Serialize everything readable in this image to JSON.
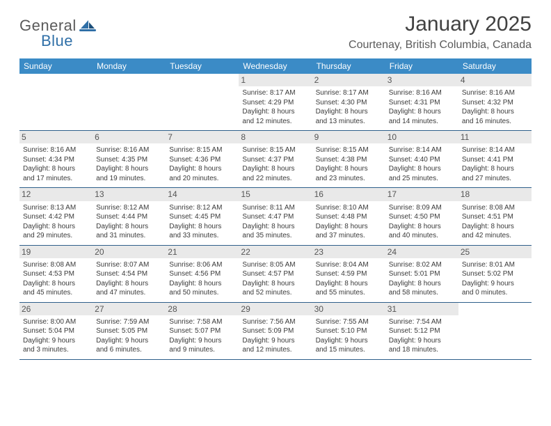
{
  "logo": {
    "text1": "General",
    "text2": "Blue"
  },
  "title": "January 2025",
  "location": "Courtenay, British Columbia, Canada",
  "colors": {
    "header_bg": "#3b8bc6",
    "header_text": "#ffffff",
    "rule": "#2e5f8a",
    "daynum_bg": "#e9e9e9",
    "body_text": "#3a3a3a",
    "title_text": "#414141",
    "logo_gray": "#5a5a5a",
    "logo_blue": "#2f6fa7"
  },
  "weekdays": [
    "Sunday",
    "Monday",
    "Tuesday",
    "Wednesday",
    "Thursday",
    "Friday",
    "Saturday"
  ],
  "weeks": [
    [
      null,
      null,
      null,
      {
        "n": "1",
        "sunrise": "8:17 AM",
        "sunset": "4:29 PM",
        "dl1": "8 hours",
        "dl2": "12 minutes"
      },
      {
        "n": "2",
        "sunrise": "8:17 AM",
        "sunset": "4:30 PM",
        "dl1": "8 hours",
        "dl2": "13 minutes"
      },
      {
        "n": "3",
        "sunrise": "8:16 AM",
        "sunset": "4:31 PM",
        "dl1": "8 hours",
        "dl2": "14 minutes"
      },
      {
        "n": "4",
        "sunrise": "8:16 AM",
        "sunset": "4:32 PM",
        "dl1": "8 hours",
        "dl2": "16 minutes"
      }
    ],
    [
      {
        "n": "5",
        "sunrise": "8:16 AM",
        "sunset": "4:34 PM",
        "dl1": "8 hours",
        "dl2": "17 minutes"
      },
      {
        "n": "6",
        "sunrise": "8:16 AM",
        "sunset": "4:35 PM",
        "dl1": "8 hours",
        "dl2": "19 minutes"
      },
      {
        "n": "7",
        "sunrise": "8:15 AM",
        "sunset": "4:36 PM",
        "dl1": "8 hours",
        "dl2": "20 minutes"
      },
      {
        "n": "8",
        "sunrise": "8:15 AM",
        "sunset": "4:37 PM",
        "dl1": "8 hours",
        "dl2": "22 minutes"
      },
      {
        "n": "9",
        "sunrise": "8:15 AM",
        "sunset": "4:38 PM",
        "dl1": "8 hours",
        "dl2": "23 minutes"
      },
      {
        "n": "10",
        "sunrise": "8:14 AM",
        "sunset": "4:40 PM",
        "dl1": "8 hours",
        "dl2": "25 minutes"
      },
      {
        "n": "11",
        "sunrise": "8:14 AM",
        "sunset": "4:41 PM",
        "dl1": "8 hours",
        "dl2": "27 minutes"
      }
    ],
    [
      {
        "n": "12",
        "sunrise": "8:13 AM",
        "sunset": "4:42 PM",
        "dl1": "8 hours",
        "dl2": "29 minutes"
      },
      {
        "n": "13",
        "sunrise": "8:12 AM",
        "sunset": "4:44 PM",
        "dl1": "8 hours",
        "dl2": "31 minutes"
      },
      {
        "n": "14",
        "sunrise": "8:12 AM",
        "sunset": "4:45 PM",
        "dl1": "8 hours",
        "dl2": "33 minutes"
      },
      {
        "n": "15",
        "sunrise": "8:11 AM",
        "sunset": "4:47 PM",
        "dl1": "8 hours",
        "dl2": "35 minutes"
      },
      {
        "n": "16",
        "sunrise": "8:10 AM",
        "sunset": "4:48 PM",
        "dl1": "8 hours",
        "dl2": "37 minutes"
      },
      {
        "n": "17",
        "sunrise": "8:09 AM",
        "sunset": "4:50 PM",
        "dl1": "8 hours",
        "dl2": "40 minutes"
      },
      {
        "n": "18",
        "sunrise": "8:08 AM",
        "sunset": "4:51 PM",
        "dl1": "8 hours",
        "dl2": "42 minutes"
      }
    ],
    [
      {
        "n": "19",
        "sunrise": "8:08 AM",
        "sunset": "4:53 PM",
        "dl1": "8 hours",
        "dl2": "45 minutes"
      },
      {
        "n": "20",
        "sunrise": "8:07 AM",
        "sunset": "4:54 PM",
        "dl1": "8 hours",
        "dl2": "47 minutes"
      },
      {
        "n": "21",
        "sunrise": "8:06 AM",
        "sunset": "4:56 PM",
        "dl1": "8 hours",
        "dl2": "50 minutes"
      },
      {
        "n": "22",
        "sunrise": "8:05 AM",
        "sunset": "4:57 PM",
        "dl1": "8 hours",
        "dl2": "52 minutes"
      },
      {
        "n": "23",
        "sunrise": "8:04 AM",
        "sunset": "4:59 PM",
        "dl1": "8 hours",
        "dl2": "55 minutes"
      },
      {
        "n": "24",
        "sunrise": "8:02 AM",
        "sunset": "5:01 PM",
        "dl1": "8 hours",
        "dl2": "58 minutes"
      },
      {
        "n": "25",
        "sunrise": "8:01 AM",
        "sunset": "5:02 PM",
        "dl1": "9 hours",
        "dl2": "0 minutes"
      }
    ],
    [
      {
        "n": "26",
        "sunrise": "8:00 AM",
        "sunset": "5:04 PM",
        "dl1": "9 hours",
        "dl2": "3 minutes"
      },
      {
        "n": "27",
        "sunrise": "7:59 AM",
        "sunset": "5:05 PM",
        "dl1": "9 hours",
        "dl2": "6 minutes"
      },
      {
        "n": "28",
        "sunrise": "7:58 AM",
        "sunset": "5:07 PM",
        "dl1": "9 hours",
        "dl2": "9 minutes"
      },
      {
        "n": "29",
        "sunrise": "7:56 AM",
        "sunset": "5:09 PM",
        "dl1": "9 hours",
        "dl2": "12 minutes"
      },
      {
        "n": "30",
        "sunrise": "7:55 AM",
        "sunset": "5:10 PM",
        "dl1": "9 hours",
        "dl2": "15 minutes"
      },
      {
        "n": "31",
        "sunrise": "7:54 AM",
        "sunset": "5:12 PM",
        "dl1": "9 hours",
        "dl2": "18 minutes"
      },
      null
    ]
  ]
}
